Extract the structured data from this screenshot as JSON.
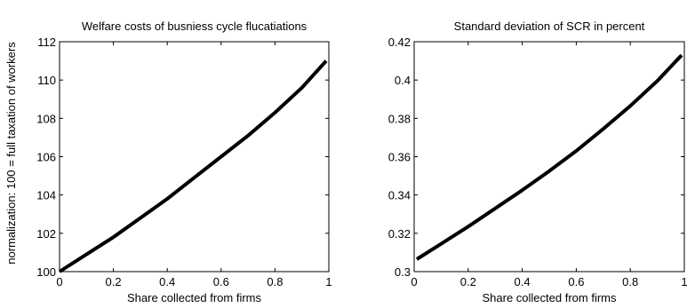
{
  "chart_data": [
    {
      "type": "line",
      "title": "Welfare costs of busniess cycle flucatiations",
      "xlabel": "Share collected from firms",
      "ylabel": "normalization: 100 = full taxation of workers",
      "xlim": [
        0,
        1
      ],
      "ylim": [
        100,
        112
      ],
      "xticks": [
        "0",
        "0.2",
        "0.4",
        "0.6",
        "0.8",
        "1"
      ],
      "yticks": [
        "100",
        "102",
        "104",
        "106",
        "108",
        "110",
        "112"
      ],
      "grid": false,
      "series": [
        {
          "color": "#000000",
          "x": [
            0,
            0.1,
            0.2,
            0.3,
            0.4,
            0.5,
            0.6,
            0.7,
            0.8,
            0.9,
            0.99
          ],
          "y": [
            100.0,
            100.9,
            101.8,
            102.8,
            103.8,
            104.9,
            106.0,
            107.1,
            108.3,
            109.6,
            111.0
          ]
        }
      ]
    },
    {
      "type": "line",
      "title": "Standard deviation of SCR in percent",
      "xlabel": "Share collected from firms",
      "ylabel": "",
      "xlim": [
        0,
        1
      ],
      "ylim": [
        0.3,
        0.42
      ],
      "xticks": [
        "0",
        "0.2",
        "0.4",
        "0.6",
        "0.8",
        "1"
      ],
      "yticks": [
        "0.3",
        "0.32",
        "0.34",
        "0.36",
        "0.38",
        "0.4",
        "0.42"
      ],
      "grid": false,
      "series": [
        {
          "color": "#000000",
          "x": [
            0.01,
            0.1,
            0.2,
            0.3,
            0.4,
            0.5,
            0.6,
            0.7,
            0.8,
            0.9,
            0.99
          ],
          "y": [
            0.3065,
            0.3145,
            0.3235,
            0.333,
            0.3425,
            0.3525,
            0.363,
            0.3745,
            0.3865,
            0.3995,
            0.413
          ]
        }
      ]
    }
  ]
}
